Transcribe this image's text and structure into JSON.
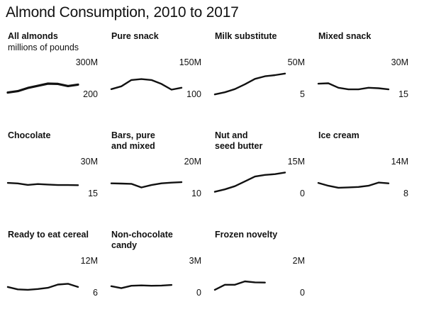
{
  "title": "Almond Consumption, 2010 to 2017",
  "line_color": "#111111",
  "chart_data": [
    {
      "type": "line",
      "title": "All almonds",
      "subtitle": "millions of pounds",
      "x": [
        2010,
        2011,
        2012,
        2013,
        2014,
        2015,
        2016,
        2017
      ],
      "ylim": [
        200,
        300
      ],
      "ymax_label": "300M",
      "ymin_label": "200",
      "values": [
        210,
        216,
        229,
        238,
        247,
        246,
        237,
        243
      ]
    },
    {
      "type": "line",
      "title": "Pure snack",
      "x": [
        2010,
        2011,
        2012,
        2013,
        2014,
        2015,
        2016,
        2017
      ],
      "ylim": [
        100,
        150
      ],
      "ymax_label": "150M",
      "ymin_label": "100",
      "values": [
        112,
        118,
        131,
        133,
        131,
        123,
        111,
        115
      ]
    },
    {
      "type": "line",
      "title": "Milk substitute",
      "x": [
        2010,
        2011,
        2012,
        2013,
        2014,
        2015,
        2016,
        2017
      ],
      "ylim": [
        5,
        50
      ],
      "ymax_label": "50M",
      "ymin_label": "5",
      "values": [
        6,
        10,
        16,
        25,
        35,
        40,
        42,
        45
      ]
    },
    {
      "type": "line",
      "title": "Mixed snack",
      "x": [
        2010,
        2011,
        2012,
        2013,
        2014,
        2015,
        2016,
        2017
      ],
      "ylim": [
        15,
        30
      ],
      "ymax_label": "30M",
      "ymin_label": "15",
      "values": [
        22,
        22.3,
        19.5,
        18.5,
        18.5,
        19.5,
        19.2,
        18.5
      ]
    },
    {
      "type": "line",
      "title": "Chocolate",
      "x": [
        2010,
        2011,
        2012,
        2013,
        2014,
        2015,
        2016,
        2017
      ],
      "ylim": [
        15,
        30
      ],
      "ymax_label": "30M",
      "ymin_label": "15",
      "values": [
        22,
        21.7,
        20.8,
        21.3,
        21,
        20.7,
        20.7,
        20.6
      ]
    },
    {
      "type": "line",
      "title": "Bars, pure\nand mixed",
      "x": [
        2010,
        2011,
        2012,
        2013,
        2014,
        2015,
        2016,
        2017
      ],
      "ylim": [
        10,
        20
      ],
      "ymax_label": "20M",
      "ymin_label": "10",
      "values": [
        14.5,
        14.4,
        14.3,
        12.8,
        13.8,
        14.5,
        14.8,
        15
      ]
    },
    {
      "type": "line",
      "title": "Nut and\nseed butter",
      "x": [
        2010,
        2011,
        2012,
        2013,
        2014,
        2015,
        2016,
        2017
      ],
      "ylim": [
        0,
        15
      ],
      "ymax_label": "15M",
      "ymin_label": "0",
      "values": [
        1.5,
        3,
        5,
        8,
        11,
        12,
        12.5,
        13.5
      ]
    },
    {
      "type": "line",
      "title": "Ice cream",
      "x": [
        2010,
        2011,
        2012,
        2013,
        2014,
        2015,
        2016,
        2017
      ],
      "ylim": [
        8,
        14
      ],
      "ymax_label": "14M",
      "ymin_label": "8",
      "values": [
        10.8,
        10.1,
        9.6,
        9.7,
        9.8,
        10.1,
        10.9,
        10.7
      ]
    },
    {
      "type": "line",
      "title": "Ready to eat cereal",
      "x": [
        2010,
        2011,
        2012,
        2013,
        2014,
        2015,
        2016,
        2017
      ],
      "ylim": [
        6,
        12
      ],
      "ymax_label": "12M",
      "ymin_label": "6",
      "values": [
        7.6,
        7,
        6.9,
        7.1,
        7.4,
        8.2,
        8.4,
        7.6
      ]
    },
    {
      "type": "line",
      "title": "Non-chocolate\ncandy",
      "x": [
        2010,
        2011,
        2012,
        2013,
        2014,
        2015,
        2016
      ],
      "ylim": [
        0,
        3
      ],
      "ymax_label": "3M",
      "ymin_label": "0",
      "values": [
        0.9,
        0.65,
        0.95,
        1.0,
        0.95,
        0.98,
        1.05
      ]
    },
    {
      "type": "line",
      "title": "Frozen novelty",
      "x": [
        2010,
        2011,
        2012,
        2013,
        2014,
        2015,
        2016
      ],
      "ylim": [
        0,
        2
      ],
      "ymax_label": "2M",
      "ymin_label": "0",
      "values": [
        0.3,
        0.72,
        0.72,
        1.0,
        0.92,
        0.9,
        null
      ]
    }
  ]
}
